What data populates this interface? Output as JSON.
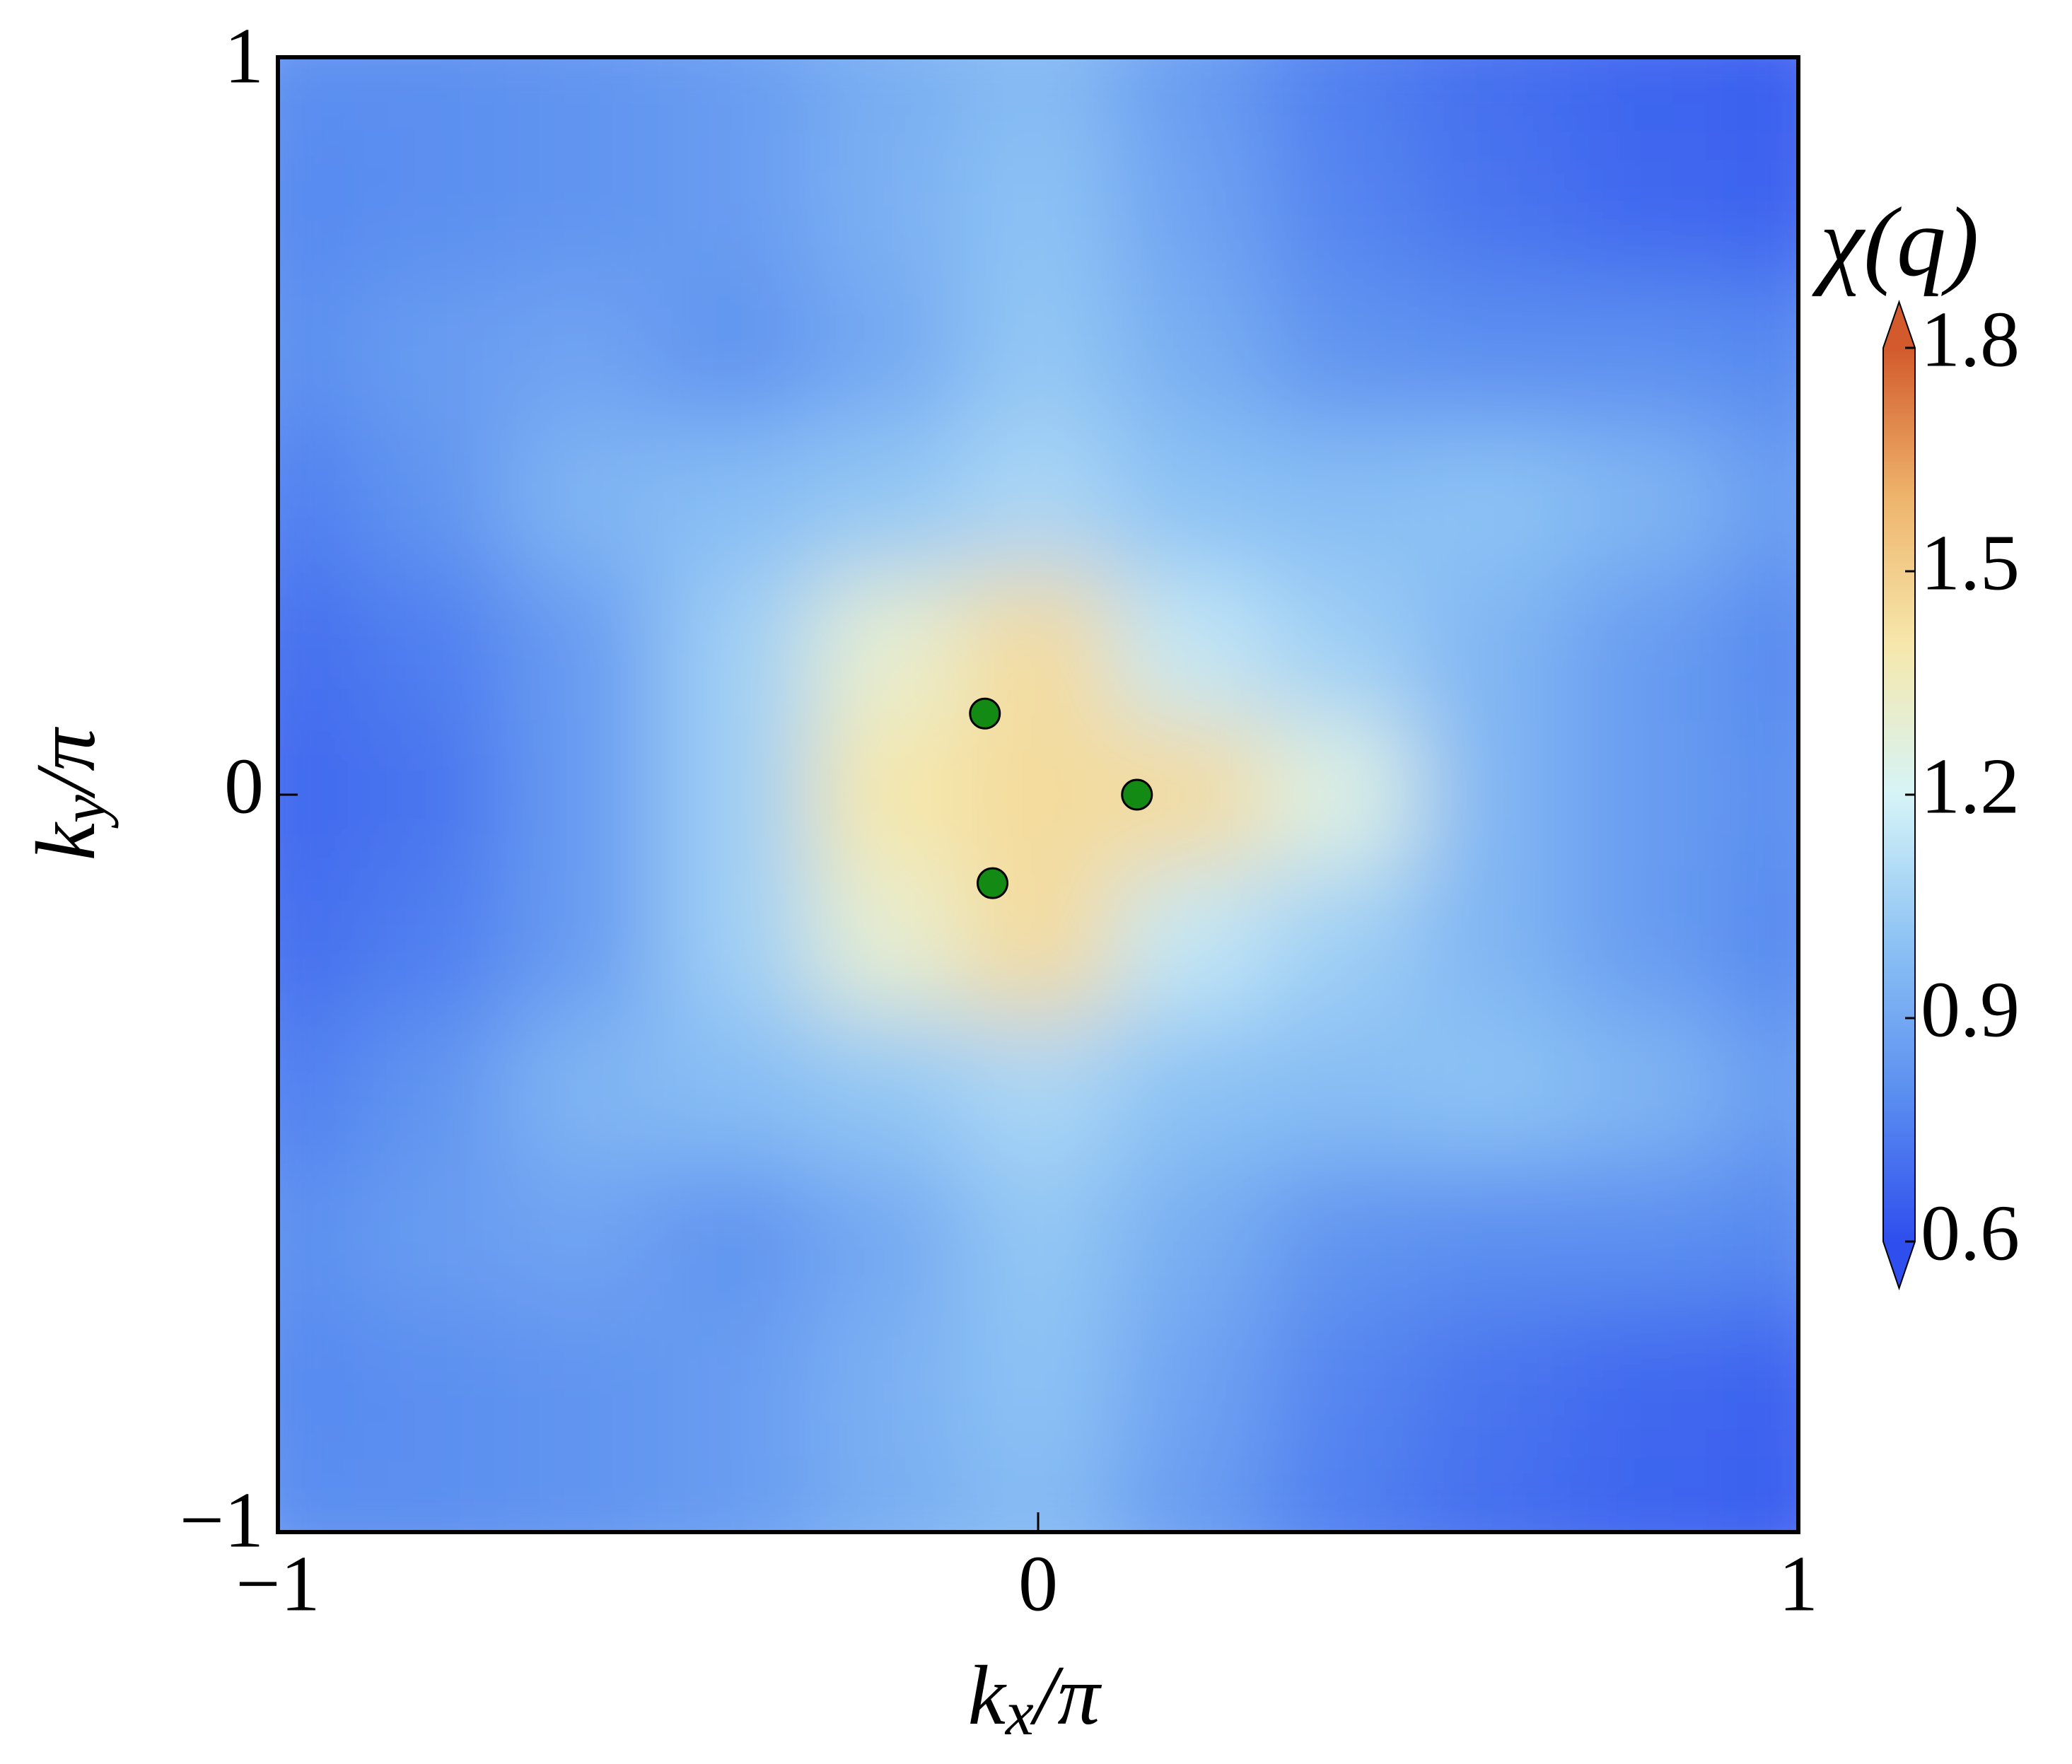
{
  "chart_data": {
    "type": "heatmap",
    "xlabel": "k_x/π",
    "ylabel": "k_y/π",
    "colorbar_label": "χ(q)",
    "x": [
      -1,
      -0.8,
      -0.6,
      -0.4,
      -0.2,
      0,
      0.2,
      0.4,
      0.6,
      0.8,
      1
    ],
    "y": [
      1,
      0.8,
      0.6,
      0.4,
      0.2,
      0,
      -0.2,
      -0.4,
      -0.6,
      -0.8,
      -1
    ],
    "z": [
      [
        0.8,
        0.8,
        0.82,
        0.85,
        0.92,
        0.97,
        0.85,
        0.75,
        0.7,
        0.67,
        0.65
      ],
      [
        0.78,
        0.8,
        0.82,
        0.85,
        0.93,
        1.0,
        0.88,
        0.77,
        0.72,
        0.68,
        0.66
      ],
      [
        0.8,
        0.85,
        0.88,
        0.82,
        0.9,
        1.02,
        0.92,
        0.82,
        0.8,
        0.8,
        0.78
      ],
      [
        0.75,
        0.82,
        0.95,
        0.98,
        1.02,
        1.08,
        1.0,
        0.98,
        1.0,
        0.95,
        0.85
      ],
      [
        0.7,
        0.75,
        0.85,
        1.05,
        1.3,
        1.45,
        1.15,
        1.05,
        0.95,
        0.85,
        0.78
      ],
      [
        0.68,
        0.72,
        0.85,
        1.05,
        1.4,
        1.45,
        1.45,
        1.25,
        0.95,
        0.85,
        0.8
      ],
      [
        0.7,
        0.75,
        0.85,
        1.05,
        1.3,
        1.45,
        1.15,
        1.05,
        0.95,
        0.85,
        0.78
      ],
      [
        0.75,
        0.82,
        0.95,
        0.98,
        1.02,
        1.08,
        1.0,
        0.98,
        1.0,
        0.95,
        0.85
      ],
      [
        0.8,
        0.85,
        0.88,
        0.82,
        0.9,
        1.02,
        0.92,
        0.82,
        0.8,
        0.8,
        0.78
      ],
      [
        0.78,
        0.8,
        0.82,
        0.85,
        0.93,
        1.0,
        0.88,
        0.77,
        0.72,
        0.68,
        0.66
      ],
      [
        0.8,
        0.8,
        0.82,
        0.85,
        0.92,
        0.97,
        0.85,
        0.75,
        0.7,
        0.67,
        0.65
      ]
    ],
    "xlim": [
      -1,
      1
    ],
    "ylim": [
      -1,
      1
    ],
    "xticks": [
      {
        "value": -1,
        "label": "−1"
      },
      0,
      1
    ],
    "yticks": [
      {
        "value": -1,
        "label": "−1"
      },
      0,
      1
    ],
    "clim": [
      0.6,
      1.8
    ],
    "cticks": [
      0.6,
      0.9,
      1.2,
      1.5,
      1.8
    ],
    "colormap": [
      "#2f4eee",
      "#5b8ff0",
      "#8cc2f4",
      "#d6f4f7",
      "#f6e8ac",
      "#eeb46c",
      "#d25a2c"
    ],
    "extend": "both",
    "points": {
      "x": [
        -0.07,
        0.13,
        -0.06
      ],
      "y": [
        0.11,
        0,
        -0.12
      ],
      "color": "#138a13"
    }
  }
}
